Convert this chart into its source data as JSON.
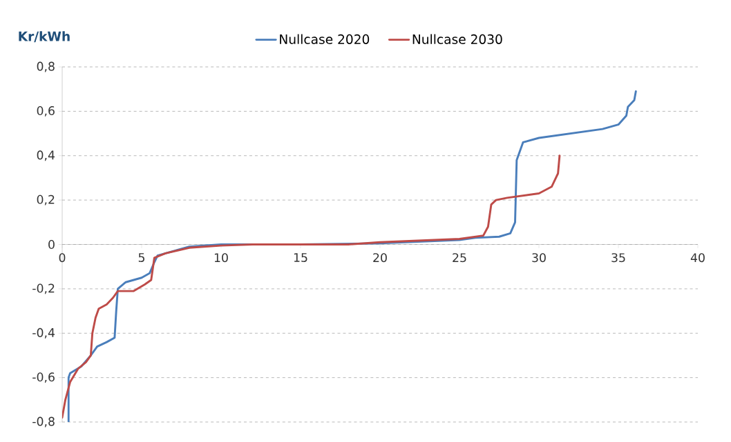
{
  "chart_data": {
    "type": "line",
    "ylabel": "Kr/kWh",
    "xlim": [
      0,
      40
    ],
    "xticks": [
      0,
      5,
      10,
      15,
      20,
      25,
      30,
      35,
      40
    ],
    "ylim": [
      -0.8,
      0.8
    ],
    "yticks": [
      {
        "value": -0.8,
        "label": "-0,8"
      },
      {
        "value": -0.6,
        "label": "-0,6"
      },
      {
        "value": -0.4,
        "label": "-0,4"
      },
      {
        "value": -0.2,
        "label": "-0,2"
      },
      {
        "value": 0,
        "label": "0"
      },
      {
        "value": 0.2,
        "label": "0,2"
      },
      {
        "value": 0.4,
        "label": "0,4"
      },
      {
        "value": 0.6,
        "label": "0,6"
      },
      {
        "value": 0.8,
        "label": "0,8"
      }
    ],
    "grid": "y",
    "legend": "top",
    "marker": "none",
    "line_style": "solid",
    "series": [
      {
        "name": "Nullcase 2020",
        "color": "#4a7ebb",
        "x": [
          0.4,
          0.4,
          0.5,
          1.2,
          1.8,
          2.2,
          2.8,
          3.3,
          3.4,
          3.5,
          4,
          5,
          5.5,
          5.8,
          6,
          7,
          8,
          10,
          15,
          20,
          25,
          26,
          27.5,
          28.2,
          28.5,
          28.6,
          28.8,
          29,
          30,
          32,
          34,
          35,
          35.5,
          35.6,
          36,
          36.1
        ],
        "values": [
          -0.8,
          -0.6,
          -0.58,
          -0.55,
          -0.5,
          -0.46,
          -0.44,
          -0.42,
          -0.3,
          -0.2,
          -0.17,
          -0.15,
          -0.13,
          -0.08,
          -0.05,
          -0.03,
          -0.01,
          0,
          0,
          0.005,
          0.02,
          0.03,
          0.035,
          0.05,
          0.1,
          0.38,
          0.42,
          0.46,
          0.48,
          0.5,
          0.52,
          0.54,
          0.58,
          0.62,
          0.65,
          0.69
        ]
      },
      {
        "name": "Nullcase 2030",
        "color": "#be4b48",
        "x": [
          0,
          0.2,
          0.5,
          1,
          1.5,
          1.8,
          1.9,
          2.1,
          2.3,
          2.8,
          3.2,
          3.5,
          4.5,
          5.2,
          5.6,
          5.8,
          6.5,
          8,
          10,
          12,
          18,
          20,
          25,
          26.5,
          26.8,
          27,
          27.3,
          28,
          29,
          30,
          30.8,
          31.2,
          31.3
        ],
        "values": [
          -0.78,
          -0.7,
          -0.62,
          -0.56,
          -0.53,
          -0.5,
          -0.4,
          -0.33,
          -0.29,
          -0.27,
          -0.24,
          -0.21,
          -0.21,
          -0.18,
          -0.16,
          -0.06,
          -0.04,
          -0.015,
          -0.005,
          0,
          0,
          0.01,
          0.025,
          0.04,
          0.08,
          0.18,
          0.2,
          0.21,
          0.22,
          0.23,
          0.26,
          0.32,
          0.4
        ]
      }
    ]
  }
}
